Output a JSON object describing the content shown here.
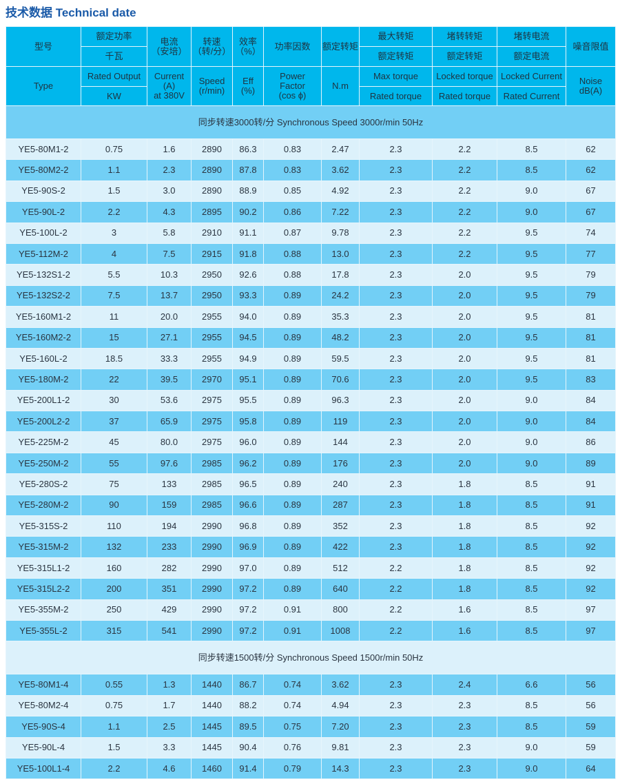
{
  "title": "技术数据 Technical date",
  "header": {
    "type_cn": "型号",
    "type_en": "Type",
    "power_cn1": "额定功率",
    "power_cn2": "千瓦",
    "power_en1": "Rated Output",
    "power_en2": "KW",
    "current_cn": "电流\n（安培）",
    "current_en": "Current\n(A)\nat 380V",
    "speed_cn": "转速\n（转/分）",
    "speed_en": "Speed\n(r/min)",
    "eff_cn": "效率\n（%）",
    "eff_en": "Eff\n(%)",
    "pf_cn": "功率因数",
    "pf_en": "Power\nFactor\n(cos ϕ)",
    "torque_cn": "额定转矩",
    "torque_en": "N.m",
    "max_cn1": "最大转矩",
    "max_cn2": "额定转矩",
    "max_en1": "Max torque",
    "max_en2": "Rated torque",
    "lt_cn1": "堵转转矩",
    "lt_cn2": "额定转矩",
    "lt_en1": "Locked torque",
    "lt_en2": "Rated torque",
    "lc_cn1": "堵转电流",
    "lc_cn2": "额定电流",
    "lc_en1": "Locked Current",
    "lc_en2": "Rated Current",
    "noise_cn": "噪音限值",
    "noise_en": "Noise\ndB(A)"
  },
  "sections": [
    {
      "label": "同步转速3000转/分 Synchronous Speed 3000r/min 50Hz",
      "rows": [
        [
          "YE5-80M1-2",
          "0.75",
          "1.6",
          "2890",
          "86.3",
          "0.83",
          "2.47",
          "2.3",
          "2.2",
          "8.5",
          "62"
        ],
        [
          "YE5-80M2-2",
          "1.1",
          "2.3",
          "2890",
          "87.8",
          "0.83",
          "3.62",
          "2.3",
          "2.2",
          "8.5",
          "62"
        ],
        [
          "YE5-90S-2",
          "1.5",
          "3.0",
          "2890",
          "88.9",
          "0.85",
          "4.92",
          "2.3",
          "2.2",
          "9.0",
          "67"
        ],
        [
          "YE5-90L-2",
          "2.2",
          "4.3",
          "2895",
          "90.2",
          "0.86",
          "7.22",
          "2.3",
          "2.2",
          "9.0",
          "67"
        ],
        [
          "YE5-100L-2",
          "3",
          "5.8",
          "2910",
          "91.1",
          "0.87",
          "9.78",
          "2.3",
          "2.2",
          "9.5",
          "74"
        ],
        [
          "YE5-112M-2",
          "4",
          "7.5",
          "2915",
          "91.8",
          "0.88",
          "13.0",
          "2.3",
          "2.2",
          "9.5",
          "77"
        ],
        [
          "YE5-132S1-2",
          "5.5",
          "10.3",
          "2950",
          "92.6",
          "0.88",
          "17.8",
          "2.3",
          "2.0",
          "9.5",
          "79"
        ],
        [
          "YE5-132S2-2",
          "7.5",
          "13.7",
          "2950",
          "93.3",
          "0.89",
          "24.2",
          "2.3",
          "2.0",
          "9.5",
          "79"
        ],
        [
          "YE5-160M1-2",
          "11",
          "20.0",
          "2955",
          "94.0",
          "0.89",
          "35.3",
          "2.3",
          "2.0",
          "9.5",
          "81"
        ],
        [
          "YE5-160M2-2",
          "15",
          "27.1",
          "2955",
          "94.5",
          "0.89",
          "48.2",
          "2.3",
          "2.0",
          "9.5",
          "81"
        ],
        [
          "YE5-160L-2",
          "18.5",
          "33.3",
          "2955",
          "94.9",
          "0.89",
          "59.5",
          "2.3",
          "2.0",
          "9.5",
          "81"
        ],
        [
          "YE5-180M-2",
          "22",
          "39.5",
          "2970",
          "95.1",
          "0.89",
          "70.6",
          "2.3",
          "2.0",
          "9.5",
          "83"
        ],
        [
          "YE5-200L1-2",
          "30",
          "53.6",
          "2975",
          "95.5",
          "0.89",
          "96.3",
          "2.3",
          "2.0",
          "9.0",
          "84"
        ],
        [
          "YE5-200L2-2",
          "37",
          "65.9",
          "2975",
          "95.8",
          "0.89",
          "119",
          "2.3",
          "2.0",
          "9.0",
          "84"
        ],
        [
          "YE5-225M-2",
          "45",
          "80.0",
          "2975",
          "96.0",
          "0.89",
          "144",
          "2.3",
          "2.0",
          "9.0",
          "86"
        ],
        [
          "YE5-250M-2",
          "55",
          "97.6",
          "2985",
          "96.2",
          "0.89",
          "176",
          "2.3",
          "2.0",
          "9.0",
          "89"
        ],
        [
          "YE5-280S-2",
          "75",
          "133",
          "2985",
          "96.5",
          "0.89",
          "240",
          "2.3",
          "1.8",
          "8.5",
          "91"
        ],
        [
          "YE5-280M-2",
          "90",
          "159",
          "2985",
          "96.6",
          "0.89",
          "287",
          "2.3",
          "1.8",
          "8.5",
          "91"
        ],
        [
          "YE5-315S-2",
          "110",
          "194",
          "2990",
          "96.8",
          "0.89",
          "352",
          "2.3",
          "1.8",
          "8.5",
          "92"
        ],
        [
          "YE5-315M-2",
          "132",
          "233",
          "2990",
          "96.9",
          "0.89",
          "422",
          "2.3",
          "1.8",
          "8.5",
          "92"
        ],
        [
          "YE5-315L1-2",
          "160",
          "282",
          "2990",
          "97.0",
          "0.89",
          "512",
          "2.2",
          "1.8",
          "8.5",
          "92"
        ],
        [
          "YE5-315L2-2",
          "200",
          "351",
          "2990",
          "97.2",
          "0.89",
          "640",
          "2.2",
          "1.8",
          "8.5",
          "92"
        ],
        [
          "YE5-355M-2",
          "250",
          "429",
          "2990",
          "97.2",
          "0.91",
          "800",
          "2.2",
          "1.6",
          "8.5",
          "97"
        ],
        [
          "YE5-355L-2",
          "315",
          "541",
          "2990",
          "97.2",
          "0.91",
          "1008",
          "2.2",
          "1.6",
          "8.5",
          "97"
        ]
      ]
    },
    {
      "label": "同步转速1500转/分 Synchronous Speed 1500r/min 50Hz",
      "rows": [
        [
          "YE5-80M1-4",
          "0.55",
          "1.3",
          "1440",
          "86.7",
          "0.74",
          "3.62",
          "2.3",
          "2.4",
          "6.6",
          "56"
        ],
        [
          "YE5-80M2-4",
          "0.75",
          "1.7",
          "1440",
          "88.2",
          "0.74",
          "4.94",
          "2.3",
          "2.3",
          "8.5",
          "56"
        ],
        [
          "YE5-90S-4",
          "1.1",
          "2.5",
          "1445",
          "89.5",
          "0.75",
          "7.20",
          "2.3",
          "2.3",
          "8.5",
          "59"
        ],
        [
          "YE5-90L-4",
          "1.5",
          "3.3",
          "1445",
          "90.4",
          "0.76",
          "9.81",
          "2.3",
          "2.3",
          "9.0",
          "59"
        ],
        [
          "YE5-100L1-4",
          "2.2",
          "4.6",
          "1460",
          "91.4",
          "0.79",
          "14.3",
          "2.3",
          "2.3",
          "9.0",
          "64"
        ]
      ]
    }
  ]
}
